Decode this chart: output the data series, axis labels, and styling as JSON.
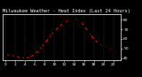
{
  "title": "Milwaukee Weather - Heat Index (Last 24 Hours)",
  "hours": [
    0,
    1,
    2,
    3,
    4,
    5,
    6,
    7,
    8,
    9,
    10,
    11,
    12,
    13,
    14,
    15,
    16,
    17,
    18,
    19,
    20,
    21,
    22,
    23
  ],
  "heat_index": [
    44,
    43,
    42,
    41,
    40,
    41,
    44,
    49,
    55,
    62,
    68,
    73,
    77,
    80,
    81,
    79,
    74,
    67,
    60,
    55,
    52,
    50,
    48,
    47
  ],
  "ylim": [
    38,
    86
  ],
  "xlim": [
    -0.5,
    23.5
  ],
  "yticks": [
    40,
    50,
    60,
    70,
    80
  ],
  "ytick_labels": [
    "40",
    "50",
    "60",
    "70",
    "80"
  ],
  "xticks": [
    0,
    2,
    4,
    6,
    8,
    10,
    12,
    14,
    16,
    18,
    20,
    22
  ],
  "xtick_labels": [
    "0",
    "2",
    "4",
    "6",
    "8",
    "10",
    "12",
    "14",
    "16",
    "18",
    "20",
    "22"
  ],
  "line_color": "#ff0000",
  "marker_color": "#000000",
  "bg_color": "#000000",
  "plot_bg": "#000000",
  "grid_color": "#555555",
  "title_color": "#ffffff",
  "axis_color": "#ffffff",
  "title_fontsize": 3.8,
  "tick_fontsize": 3.2,
  "line_width": 0.8,
  "marker_size": 1.5,
  "top_dotted_color": "#888888"
}
